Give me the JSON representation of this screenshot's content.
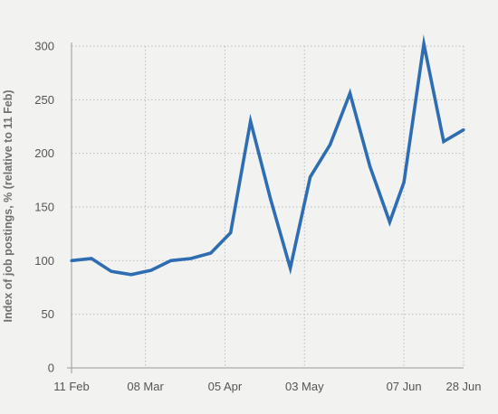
{
  "chart_data": {
    "type": "line",
    "title": "",
    "xlabel": "",
    "ylabel": "Index of job postings, % (relative to 11 Feb)",
    "ylim": [
      0,
      300
    ],
    "yticks": [
      0,
      50,
      100,
      150,
      200,
      250,
      300
    ],
    "xlim": [
      "2020-02-11",
      "2020-06-28"
    ],
    "xticks": [
      {
        "date": "2020-02-11",
        "label": "11 Feb"
      },
      {
        "date": "2020-03-08",
        "label": "08 Mar"
      },
      {
        "date": "2020-04-05",
        "label": "05 Apr"
      },
      {
        "date": "2020-05-03",
        "label": "03 May"
      },
      {
        "date": "2020-06-07",
        "label": "07 Jun"
      },
      {
        "date": "2020-06-28",
        "label": "28 Jun"
      }
    ],
    "grid": true,
    "line_color": "#2f6db3",
    "series": [
      {
        "x": [
          "2020-02-11",
          "2020-02-18",
          "2020-02-25",
          "2020-03-03",
          "2020-03-10",
          "2020-03-17",
          "2020-03-24",
          "2020-03-31",
          "2020-04-07",
          "2020-04-14",
          "2020-04-21",
          "2020-04-28",
          "2020-05-05",
          "2020-05-12",
          "2020-05-19",
          "2020-05-26",
          "2020-06-02",
          "2020-06-07",
          "2020-06-14",
          "2020-06-21",
          "2020-06-28"
        ],
        "values": [
          100,
          102,
          90,
          87,
          91,
          100,
          102,
          107,
          126,
          230,
          158,
          93,
          178,
          208,
          256,
          188,
          136,
          173,
          302,
          211,
          222
        ]
      }
    ]
  }
}
